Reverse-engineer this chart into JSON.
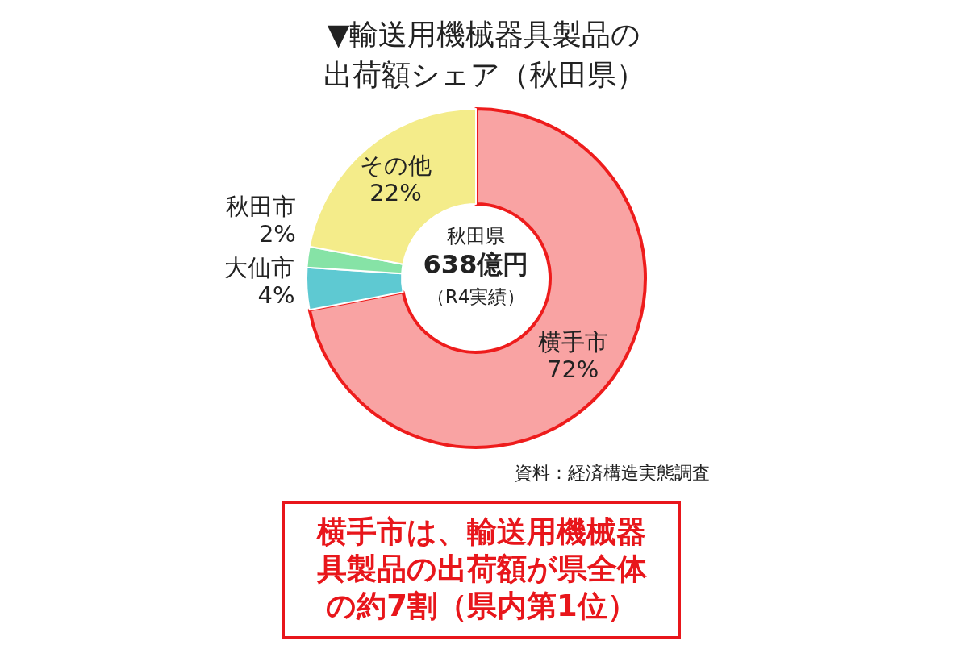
{
  "chart_data": {
    "type": "donut",
    "title": "▼輸送用機械器具製品の出荷額シェア（秋田県）",
    "categories": [
      "横手市",
      "大仙市",
      "秋田市",
      "その他"
    ],
    "values": [
      72,
      4,
      2,
      22
    ],
    "value_labels": [
      "72%",
      "4%",
      "2%",
      "22%"
    ],
    "colors": [
      "#f9a3a3",
      "#5ec9d2",
      "#86e3a6",
      "#f4ec8a"
    ],
    "annotations": [
      "秋田県",
      "638億円",
      "（R4実績）",
      "資料：経済構造実態調査",
      "横手市は、輸送用機械器具製品の出荷額が県全体の約7割（県内第1位）"
    ],
    "legend": false
  }
}
